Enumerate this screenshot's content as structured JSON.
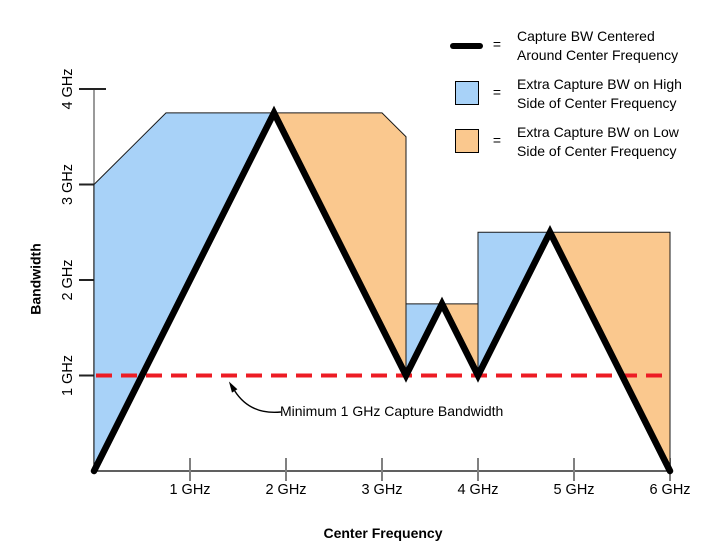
{
  "colors": {
    "blue_fill": "#A8D2F8",
    "orange_fill": "#FAC88E",
    "red_dashed": "#ED1C24",
    "black_line": "#000000",
    "region_outline": "#1a1a1a",
    "y_axis_line": "#808080",
    "x_axis_line": "#000000",
    "x_tick": "#808080",
    "y_tick": "#222222",
    "text": "#000000"
  },
  "legend": {
    "items": [
      {
        "swatch": "thick-black-line",
        "equals": "=",
        "line1": "Capture BW Centered",
        "line2": "Around Center Frequency"
      },
      {
        "swatch": "blue-box",
        "equals": "=",
        "line1": "Extra Capture BW on High",
        "line2": "Side of Center Frequency"
      },
      {
        "swatch": "orange-box",
        "equals": "=",
        "line1": "Extra Capture BW on Low",
        "line2": "Side of Center Frequency"
      }
    ]
  },
  "annotation": {
    "label": "Minimum 1 GHz Capture Bandwidth",
    "target": {
      "x_ghz": 1.4,
      "y_ghz": 1
    }
  },
  "chart_data": {
    "type": "area",
    "title": "",
    "xlabel": "Center Frequency",
    "ylabel": "Bandwidth",
    "xlim": [
      0,
      6
    ],
    "ylim": [
      0,
      4
    ],
    "grid": false,
    "legend_position": "top-right",
    "x_ticks": [
      {
        "v": 1,
        "label": "1 GHz"
      },
      {
        "v": 2,
        "label": "2 GHz"
      },
      {
        "v": 3,
        "label": "3 GHz"
      },
      {
        "v": 4,
        "label": "4 GHz"
      },
      {
        "v": 5,
        "label": "5 GHz"
      },
      {
        "v": 6,
        "label": "6 GHz"
      }
    ],
    "y_ticks": [
      {
        "v": 1,
        "label": "1 GHz"
      },
      {
        "v": 2,
        "label": "2 GHz"
      },
      {
        "v": 3,
        "label": "3 GHz"
      },
      {
        "v": 4,
        "label": "4 GHz"
      }
    ],
    "series": [
      {
        "name": "Extra Capture BW on High Side of Center Frequency",
        "kind": "area",
        "color_key": "blue_fill",
        "polygons": [
          [
            [
              0,
              0
            ],
            [
              0,
              3
            ],
            [
              0.75,
              3.75
            ],
            [
              1.875,
              3.75
            ]
          ],
          [
            [
              3.25,
              1
            ],
            [
              3.25,
              1.75
            ],
            [
              3.625,
              1.75
            ]
          ],
          [
            [
              4,
              1
            ],
            [
              4,
              2.5
            ],
            [
              4.75,
              2.5
            ]
          ]
        ]
      },
      {
        "name": "Extra Capture BW on Low Side of Center Frequency",
        "kind": "area",
        "color_key": "orange_fill",
        "polygons": [
          [
            [
              1.875,
              3.75
            ],
            [
              3,
              3.75
            ],
            [
              3.25,
              3.5
            ],
            [
              3.25,
              1
            ]
          ],
          [
            [
              3.625,
              1.75
            ],
            [
              4,
              1.75
            ],
            [
              4,
              1
            ]
          ],
          [
            [
              4.75,
              2.5
            ],
            [
              6,
              2.5
            ],
            [
              6,
              0
            ]
          ]
        ]
      },
      {
        "name": "Minimum 1 GHz Capture Bandwidth",
        "kind": "hline",
        "color_key": "red_dashed",
        "y": 1,
        "x_range": [
          0,
          6
        ],
        "dash": [
          16,
          9
        ],
        "stroke_width": 4
      },
      {
        "name": "Capture BW Centered Around Center Frequency",
        "kind": "line",
        "color_key": "black_line",
        "stroke_width": 6.5,
        "points": [
          [
            0,
            0
          ],
          [
            1.875,
            3.75
          ],
          [
            3.25,
            1
          ],
          [
            3.625,
            1.75
          ],
          [
            4,
            1
          ],
          [
            4.75,
            2.5
          ],
          [
            6,
            0
          ]
        ]
      }
    ]
  }
}
